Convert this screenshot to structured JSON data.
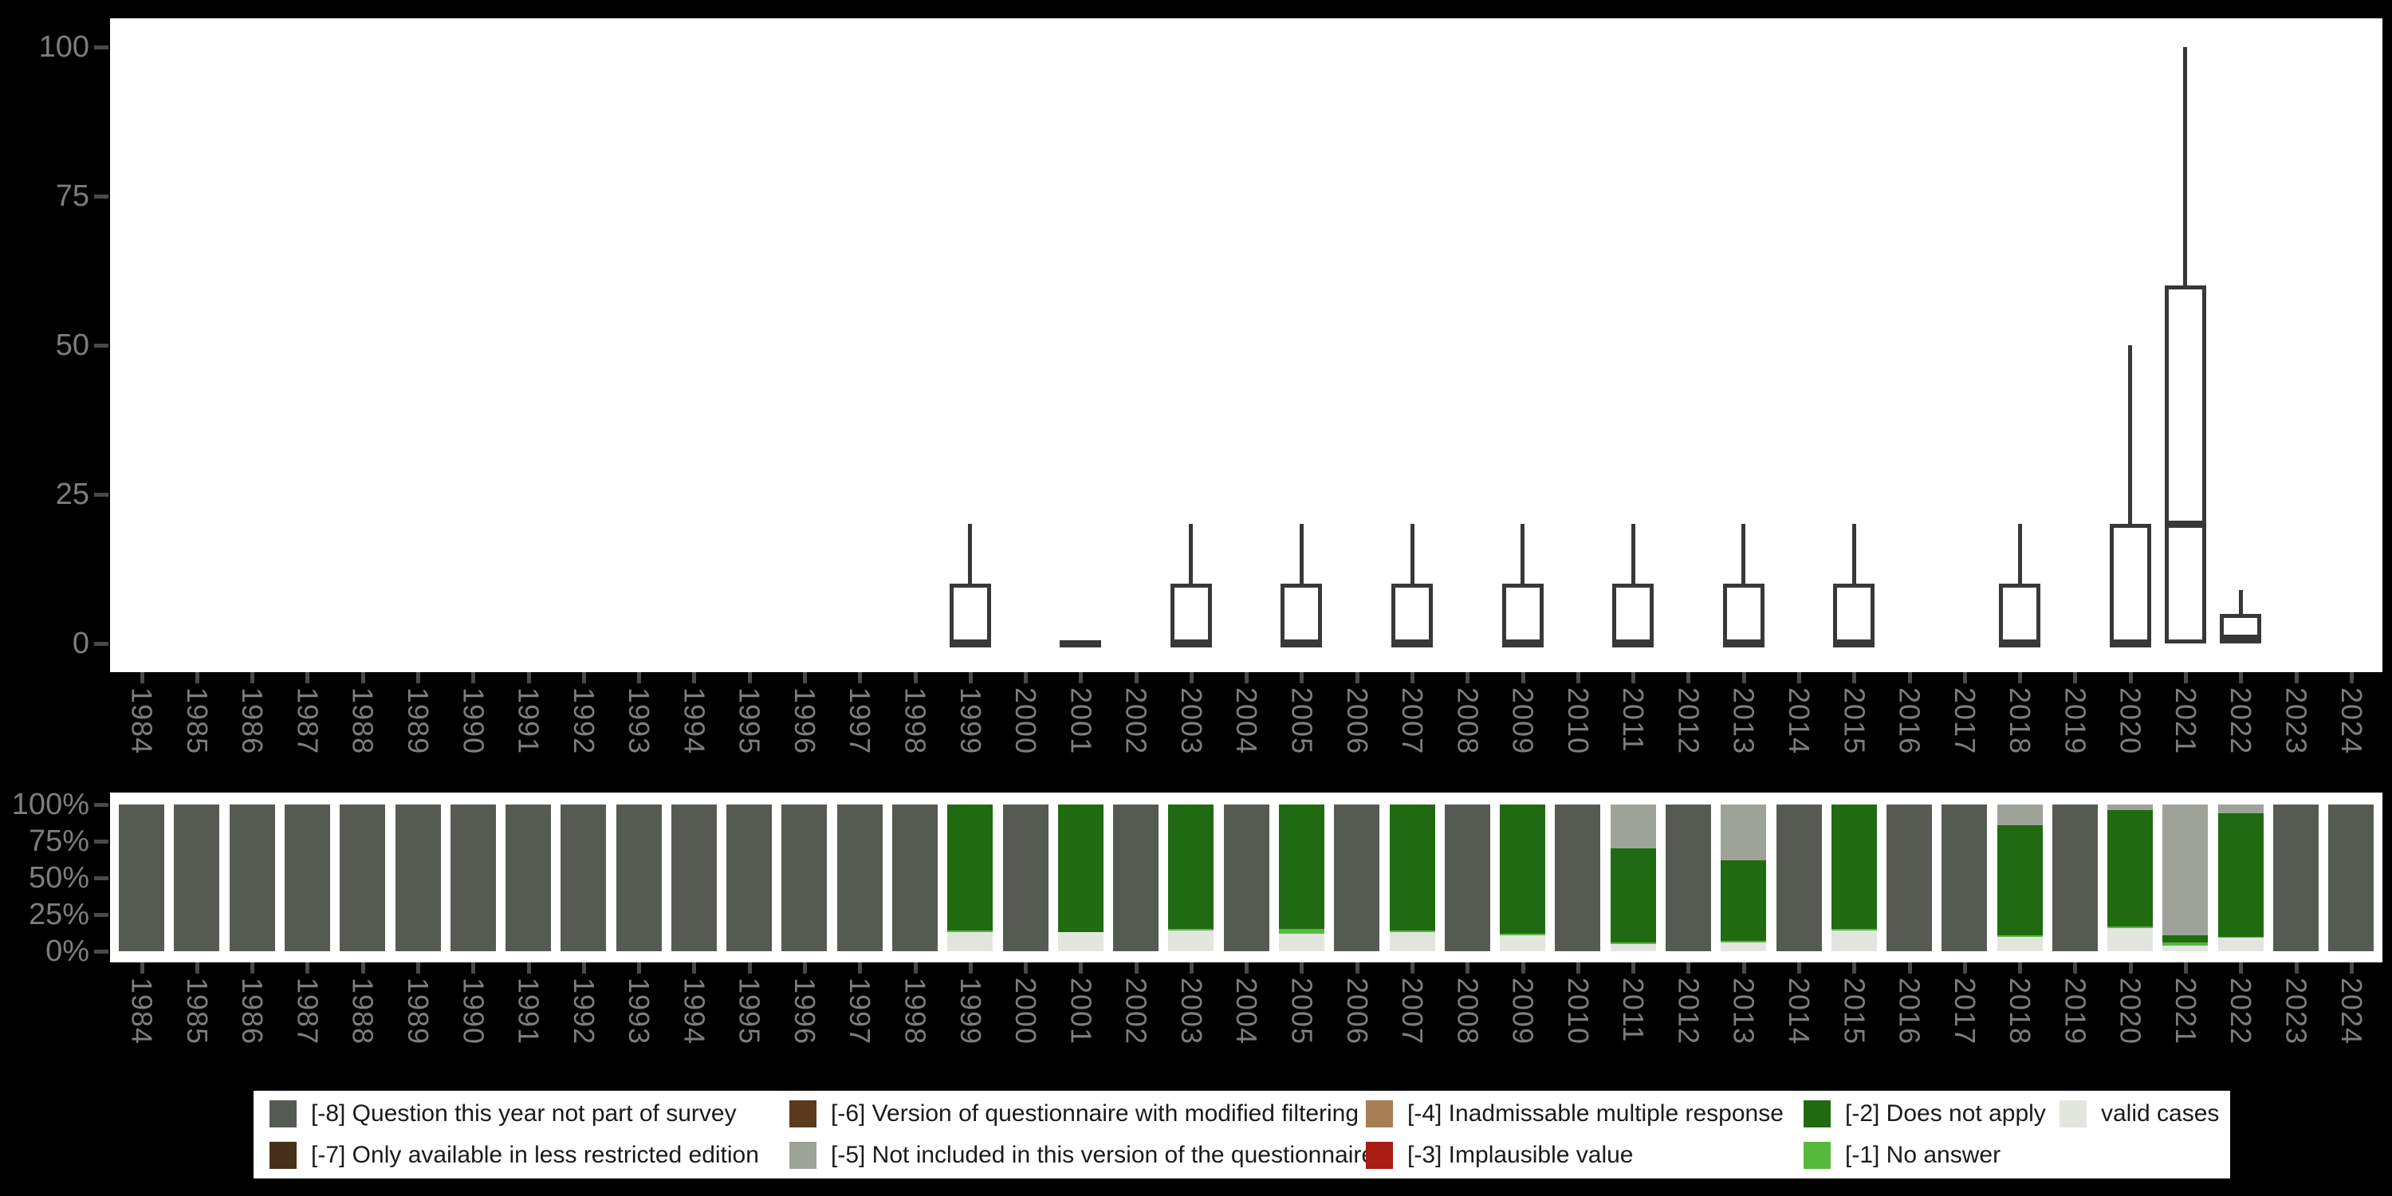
{
  "colors": {
    "background": "#000000",
    "panel_bg": "#ffffff",
    "box_stroke": "#383838",
    "axis_label": "#7d7d7d",
    "tick": "#4a4a4a",
    "legend_bg": "#ffffff",
    "legend_text": "#1a1a1a"
  },
  "years": [
    1984,
    1985,
    1986,
    1987,
    1988,
    1989,
    1990,
    1991,
    1992,
    1993,
    1994,
    1995,
    1996,
    1997,
    1998,
    1999,
    2000,
    2001,
    2002,
    2003,
    2004,
    2005,
    2006,
    2007,
    2008,
    2009,
    2010,
    2011,
    2012,
    2013,
    2014,
    2015,
    2016,
    2017,
    2018,
    2019,
    2020,
    2021,
    2022,
    2023,
    2024
  ],
  "chart_data": [
    {
      "type": "boxplot",
      "title": "",
      "xlabel": "",
      "ylabel": "",
      "ylim": [
        0,
        100
      ],
      "yticks": [
        0,
        25,
        50,
        75,
        100
      ],
      "grid": false,
      "boxes": [
        {
          "year": 1999,
          "q1": 0,
          "median": 0,
          "q3": 10,
          "whisker_low": 0,
          "whisker_high": 20
        },
        {
          "year": 2001,
          "q1": 0,
          "median": 0,
          "q3": 0,
          "whisker_low": 0,
          "whisker_high": 0
        },
        {
          "year": 2003,
          "q1": 0,
          "median": 0,
          "q3": 10,
          "whisker_low": 0,
          "whisker_high": 20
        },
        {
          "year": 2005,
          "q1": 0,
          "median": 0,
          "q3": 10,
          "whisker_low": 0,
          "whisker_high": 20
        },
        {
          "year": 2007,
          "q1": 0,
          "median": 0,
          "q3": 10,
          "whisker_low": 0,
          "whisker_high": 20
        },
        {
          "year": 2009,
          "q1": 0,
          "median": 0,
          "q3": 10,
          "whisker_low": 0,
          "whisker_high": 20
        },
        {
          "year": 2011,
          "q1": 0,
          "median": 0,
          "q3": 10,
          "whisker_low": 0,
          "whisker_high": 20
        },
        {
          "year": 2013,
          "q1": 0,
          "median": 0,
          "q3": 10,
          "whisker_low": 0,
          "whisker_high": 20
        },
        {
          "year": 2015,
          "q1": 0,
          "median": 0,
          "q3": 10,
          "whisker_low": 0,
          "whisker_high": 20
        },
        {
          "year": 2018,
          "q1": 0,
          "median": 0,
          "q3": 10,
          "whisker_low": 0,
          "whisker_high": 20
        },
        {
          "year": 2020,
          "q1": 0,
          "median": 0,
          "q3": 20,
          "whisker_low": 0,
          "whisker_high": 50
        },
        {
          "year": 2021,
          "q1": 0,
          "median": 20,
          "q3": 60,
          "whisker_low": 0,
          "whisker_high": 100
        },
        {
          "year": 2022,
          "q1": 0,
          "median": 1,
          "q3": 5,
          "whisker_low": 0,
          "whisker_high": 9
        }
      ]
    },
    {
      "type": "bar",
      "stacked": true,
      "percent": true,
      "title": "",
      "xlabel": "",
      "ylabel": "",
      "ylim": [
        0,
        100
      ],
      "ytick_labels": [
        "0%",
        "25%",
        "50%",
        "75%",
        "100%"
      ],
      "grid": false,
      "series": [
        {
          "name": "valid cases",
          "color": "#e2e6df",
          "values": [
            0,
            0,
            0,
            0,
            0,
            0,
            0,
            0,
            0,
            0,
            0,
            0,
            0,
            0,
            0,
            13,
            0,
            13,
            0,
            14,
            0,
            12,
            0,
            13,
            0,
            11,
            0,
            5,
            0,
            6,
            0,
            14,
            0,
            0,
            10,
            0,
            16,
            4,
            9,
            0,
            0
          ]
        },
        {
          "name": "[-1] No answer",
          "color": "#57b93e",
          "values": [
            0,
            0,
            0,
            0,
            0,
            0,
            0,
            0,
            0,
            0,
            0,
            0,
            0,
            0,
            0,
            1,
            0,
            0,
            0,
            1,
            0,
            3,
            0,
            1,
            0,
            1,
            0,
            1,
            0,
            1,
            0,
            1,
            0,
            0,
            1,
            0,
            1,
            2,
            1,
            0,
            0
          ]
        },
        {
          "name": "[-2] Does not apply",
          "color": "#206b12",
          "values": [
            0,
            0,
            0,
            0,
            0,
            0,
            0,
            0,
            0,
            0,
            0,
            0,
            0,
            0,
            0,
            86,
            0,
            87,
            0,
            85,
            0,
            85,
            0,
            86,
            0,
            88,
            0,
            64,
            0,
            55,
            0,
            85,
            0,
            0,
            75,
            0,
            79,
            5,
            84,
            0,
            0
          ]
        },
        {
          "name": "[-5] Not included in this version of the questionnaire",
          "color": "#9ea39a",
          "values": [
            0,
            0,
            0,
            0,
            0,
            0,
            0,
            0,
            0,
            0,
            0,
            0,
            0,
            0,
            0,
            0,
            0,
            0,
            0,
            0,
            0,
            0,
            0,
            0,
            0,
            0,
            0,
            30,
            0,
            38,
            0,
            0,
            0,
            0,
            14,
            0,
            4,
            89,
            6,
            0,
            0
          ]
        },
        {
          "name": "[-8] Question this year not part of survey",
          "color": "#555b53",
          "values": [
            100,
            100,
            100,
            100,
            100,
            100,
            100,
            100,
            100,
            100,
            100,
            100,
            100,
            100,
            100,
            0,
            100,
            0,
            100,
            0,
            100,
            0,
            100,
            0,
            100,
            0,
            100,
            0,
            100,
            0,
            100,
            0,
            100,
            100,
            0,
            100,
            0,
            0,
            0,
            100,
            100
          ]
        }
      ]
    }
  ],
  "legend": {
    "rows": [
      [
        {
          "label": "[-8] Question this year not part of survey",
          "color": "#555b53",
          "col": 0
        },
        {
          "label": "[-6] Version of questionnaire with modified filtering",
          "color": "#5c3a1d",
          "col": 1
        },
        {
          "label": "[-4] Inadmissable multiple response",
          "color": "#a87e55",
          "col": 2
        },
        {
          "label": "[-2] Does not apply",
          "color": "#206b12",
          "col": 3
        },
        {
          "label": "valid cases",
          "color": "#e2e6df",
          "col": 4
        }
      ],
      [
        {
          "label": "[-7] Only available in less restricted edition",
          "color": "#47301a",
          "col": 0
        },
        {
          "label": "[-5] Not included in this version of the questionnaire",
          "color": "#9ea39a",
          "col": 1
        },
        {
          "label": "[-3] Implausible value",
          "color": "#a81c12",
          "col": 2
        },
        {
          "label": "[-1] No answer",
          "color": "#57b93e",
          "col": 3
        }
      ]
    ]
  }
}
